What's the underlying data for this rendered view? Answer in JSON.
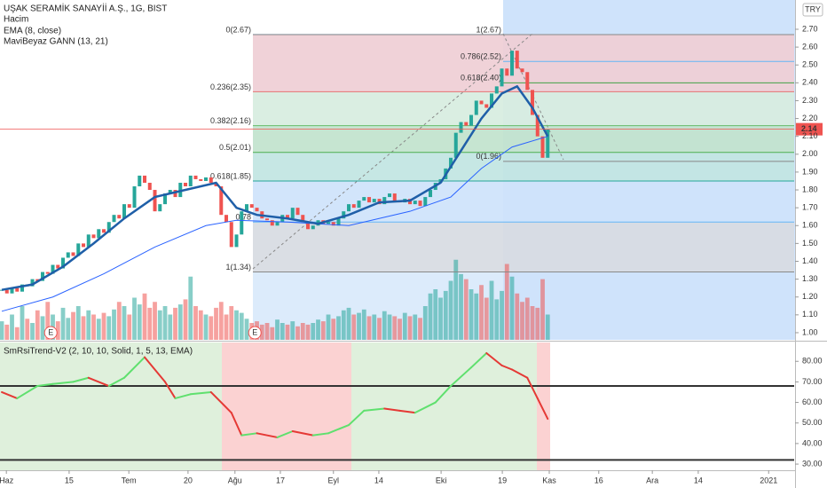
{
  "header": {
    "currency": "TRY"
  },
  "chart_data": [
    {
      "type": "candlestick",
      "title": "UŞAK SERAMİK SANAYİİ A.Ş., 1G, BIST",
      "xlim": [
        -0.35,
        155.3
      ],
      "ylim": [
        0.96,
        2.864
      ],
      "yticks": [
        {
          "value": 1.0,
          "label": "1.00"
        },
        {
          "value": 1.1,
          "label": "1.10"
        },
        {
          "value": 1.2,
          "label": "1.20"
        },
        {
          "value": 1.3,
          "label": "1.30"
        },
        {
          "value": 1.4,
          "label": "1.40"
        },
        {
          "value": 1.5,
          "label": "1.50"
        },
        {
          "value": 1.6,
          "label": "1.60"
        },
        {
          "value": 1.7,
          "label": "1.70"
        },
        {
          "value": 1.8,
          "label": "1.80"
        },
        {
          "value": 1.9,
          "label": "1.90"
        },
        {
          "value": 2.0,
          "label": "2.00"
        },
        {
          "value": 2.1,
          "label": "2.10"
        },
        {
          "value": 2.2,
          "label": "2.20"
        },
        {
          "value": 2.3,
          "label": "2.30"
        },
        {
          "value": 2.4,
          "label": "2.40"
        },
        {
          "value": 2.5,
          "label": "2.50"
        },
        {
          "value": 2.6,
          "label": "2.60"
        },
        {
          "value": 2.7,
          "label": "2.70"
        }
      ],
      "close": [
        1.24,
        1.22,
        1.25,
        1.23,
        1.27,
        1.26,
        1.3,
        1.29,
        1.34,
        1.33,
        1.38,
        1.36,
        1.42,
        1.45,
        1.43,
        1.5,
        1.48,
        1.55,
        1.53,
        1.58,
        1.56,
        1.62,
        1.66,
        1.64,
        1.72,
        1.7,
        1.82,
        1.88,
        1.84,
        1.8,
        1.68,
        1.72,
        1.78,
        1.8,
        1.76,
        1.84,
        1.82,
        1.88,
        1.86,
        1.85,
        1.87,
        1.84,
        1.82,
        1.66,
        1.62,
        1.48,
        1.55,
        1.68,
        1.72,
        1.7,
        1.68,
        1.64,
        1.63,
        1.6,
        1.62,
        1.66,
        1.64,
        1.7,
        1.66,
        1.62,
        1.58,
        1.6,
        1.63,
        1.61,
        1.62,
        1.6,
        1.64,
        1.68,
        1.72,
        1.7,
        1.74,
        1.76,
        1.73,
        1.75,
        1.72,
        1.76,
        1.78,
        1.74,
        1.73,
        1.75,
        1.72,
        1.74,
        1.71,
        1.76,
        1.8,
        1.84,
        1.86,
        1.92,
        1.98,
        2.12,
        2.18,
        2.16,
        2.22,
        2.3,
        2.28,
        2.26,
        2.34,
        2.38,
        2.48,
        2.44,
        2.58,
        2.48,
        2.46,
        2.36,
        2.22,
        2.1,
        1.98,
        2.14
      ],
      "up_color": "#26a69a",
      "down_color": "#ef5350",
      "series": [
        {
          "name": "EMA (8, close)",
          "color": "#1f5fa8",
          "x": [
            0,
            6,
            12,
            18,
            24,
            30,
            36,
            42,
            46,
            50,
            56,
            62,
            68,
            74,
            80,
            86,
            90,
            94,
            98,
            101,
            104,
            107
          ],
          "values": [
            1.24,
            1.27,
            1.37,
            1.5,
            1.64,
            1.76,
            1.8,
            1.84,
            1.7,
            1.66,
            1.64,
            1.61,
            1.66,
            1.73,
            1.74,
            1.84,
            2.02,
            2.2,
            2.34,
            2.38,
            2.26,
            2.1
          ]
        },
        {
          "name": "MaviBeyaz GANN (13, 21)",
          "color": "#2962ff",
          "x": [
            0,
            10,
            20,
            30,
            40,
            46,
            56,
            68,
            80,
            88,
            94,
            100,
            107
          ],
          "values": [
            1.12,
            1.2,
            1.33,
            1.48,
            1.6,
            1.63,
            1.62,
            1.6,
            1.68,
            1.76,
            1.92,
            2.04,
            2.1
          ]
        }
      ],
      "fib_left": [
        {
          "label": "0(2.67)",
          "value": 2.67
        },
        {
          "label": "0.236(2.35)",
          "value": 2.35
        },
        {
          "label": "0.382(2.16)",
          "value": 2.16
        },
        {
          "label": "0.5(2.01)",
          "value": 2.01
        },
        {
          "label": "0.618(1.85)",
          "value": 1.85
        },
        {
          "label": "0.78",
          "value": 1.62
        },
        {
          "label": "1(1.34)",
          "value": 1.34
        }
      ],
      "fib_right": [
        {
          "label": "1(2.67)",
          "value": 2.67
        },
        {
          "label": "0.786(2.52)",
          "value": 2.52
        },
        {
          "label": "0.618(2.40)",
          "value": 2.4
        },
        {
          "label": "0(1.96)",
          "value": 1.96
        }
      ],
      "markers": [
        {
          "x": 9.6,
          "label": "E"
        },
        {
          "x": 49.6,
          "label": "E"
        }
      ]
    },
    {
      "type": "bar",
      "title": "Hacim",
      "xlim": [
        -0.35,
        155.3
      ],
      "ylim": [
        0,
        100
      ],
      "values": [
        22,
        18,
        30,
        15,
        40,
        25,
        20,
        35,
        28,
        45,
        30,
        22,
        38,
        26,
        33,
        40,
        28,
        35,
        30,
        25,
        32,
        28,
        36,
        45,
        40,
        30,
        50,
        42,
        55,
        38,
        45,
        35,
        40,
        30,
        38,
        42,
        48,
        75,
        40,
        35,
        30,
        28,
        38,
        45,
        30,
        40,
        35,
        32,
        25,
        20,
        22,
        18,
        20,
        15,
        24,
        20,
        18,
        22,
        16,
        20,
        18,
        20,
        24,
        22,
        30,
        25,
        28,
        35,
        38,
        30,
        32,
        36,
        28,
        30,
        26,
        34,
        30,
        28,
        25,
        32,
        28,
        30,
        26,
        40,
        55,
        60,
        50,
        58,
        70,
        95,
        78,
        72,
        60,
        55,
        65,
        50,
        70,
        48,
        58,
        90,
        75,
        55,
        45,
        50,
        40,
        38,
        72,
        30
      ]
    },
    {
      "type": "line",
      "title": "SmRsiTrend-V2 (2, 10, 10, Solid, 1, 5, 13, EMA)",
      "xlim": [
        -0.35,
        155.3
      ],
      "ylim": [
        27,
        89.6
      ],
      "yticks": [
        {
          "value": 30,
          "label": "30.00"
        },
        {
          "value": 40,
          "label": "40.00"
        },
        {
          "value": 50,
          "label": "50.00"
        },
        {
          "value": 60,
          "label": "60.00"
        },
        {
          "value": 70,
          "label": "70.00"
        },
        {
          "value": 80,
          "label": "80.00"
        }
      ],
      "xticks": [
        {
          "value": 0.9,
          "label": "Haz"
        },
        {
          "value": 13.2,
          "label": "15"
        },
        {
          "value": 24.9,
          "label": "Tem"
        },
        {
          "value": 36.5,
          "label": "20"
        },
        {
          "value": 45.7,
          "label": "Ağu"
        },
        {
          "value": 54.6,
          "label": "17"
        },
        {
          "value": 65,
          "label": "Eyl"
        },
        {
          "value": 73.9,
          "label": "14"
        },
        {
          "value": 86.1,
          "label": "Eki"
        },
        {
          "value": 98.1,
          "label": "19"
        },
        {
          "value": 107.3,
          "label": "Kas"
        },
        {
          "value": 117,
          "label": "16"
        },
        {
          "value": 127.5,
          "label": "Ara"
        },
        {
          "value": 136.5,
          "label": "14"
        },
        {
          "value": 150.3,
          "label": "2021"
        }
      ],
      "levels": [
        68,
        32
      ],
      "series": [
        {
          "up_color": "#5fe06e",
          "down_color": "#e53935",
          "x": [
            0,
            3,
            7,
            10,
            14,
            17,
            21,
            24,
            28,
            32,
            34,
            37,
            41,
            45,
            47,
            50,
            54,
            57,
            61,
            64,
            68,
            71,
            75,
            78,
            81,
            85,
            88,
            92,
            95,
            98,
            100,
            103,
            105,
            107
          ],
          "values": [
            65,
            62,
            68,
            69,
            70,
            72,
            68,
            72,
            82,
            70,
            62,
            64,
            65,
            55,
            44,
            45,
            43,
            46,
            44,
            45,
            49,
            56,
            57,
            56,
            55,
            60,
            68,
            77,
            84,
            78,
            76,
            72,
            62,
            52
          ]
        }
      ]
    }
  ]
}
